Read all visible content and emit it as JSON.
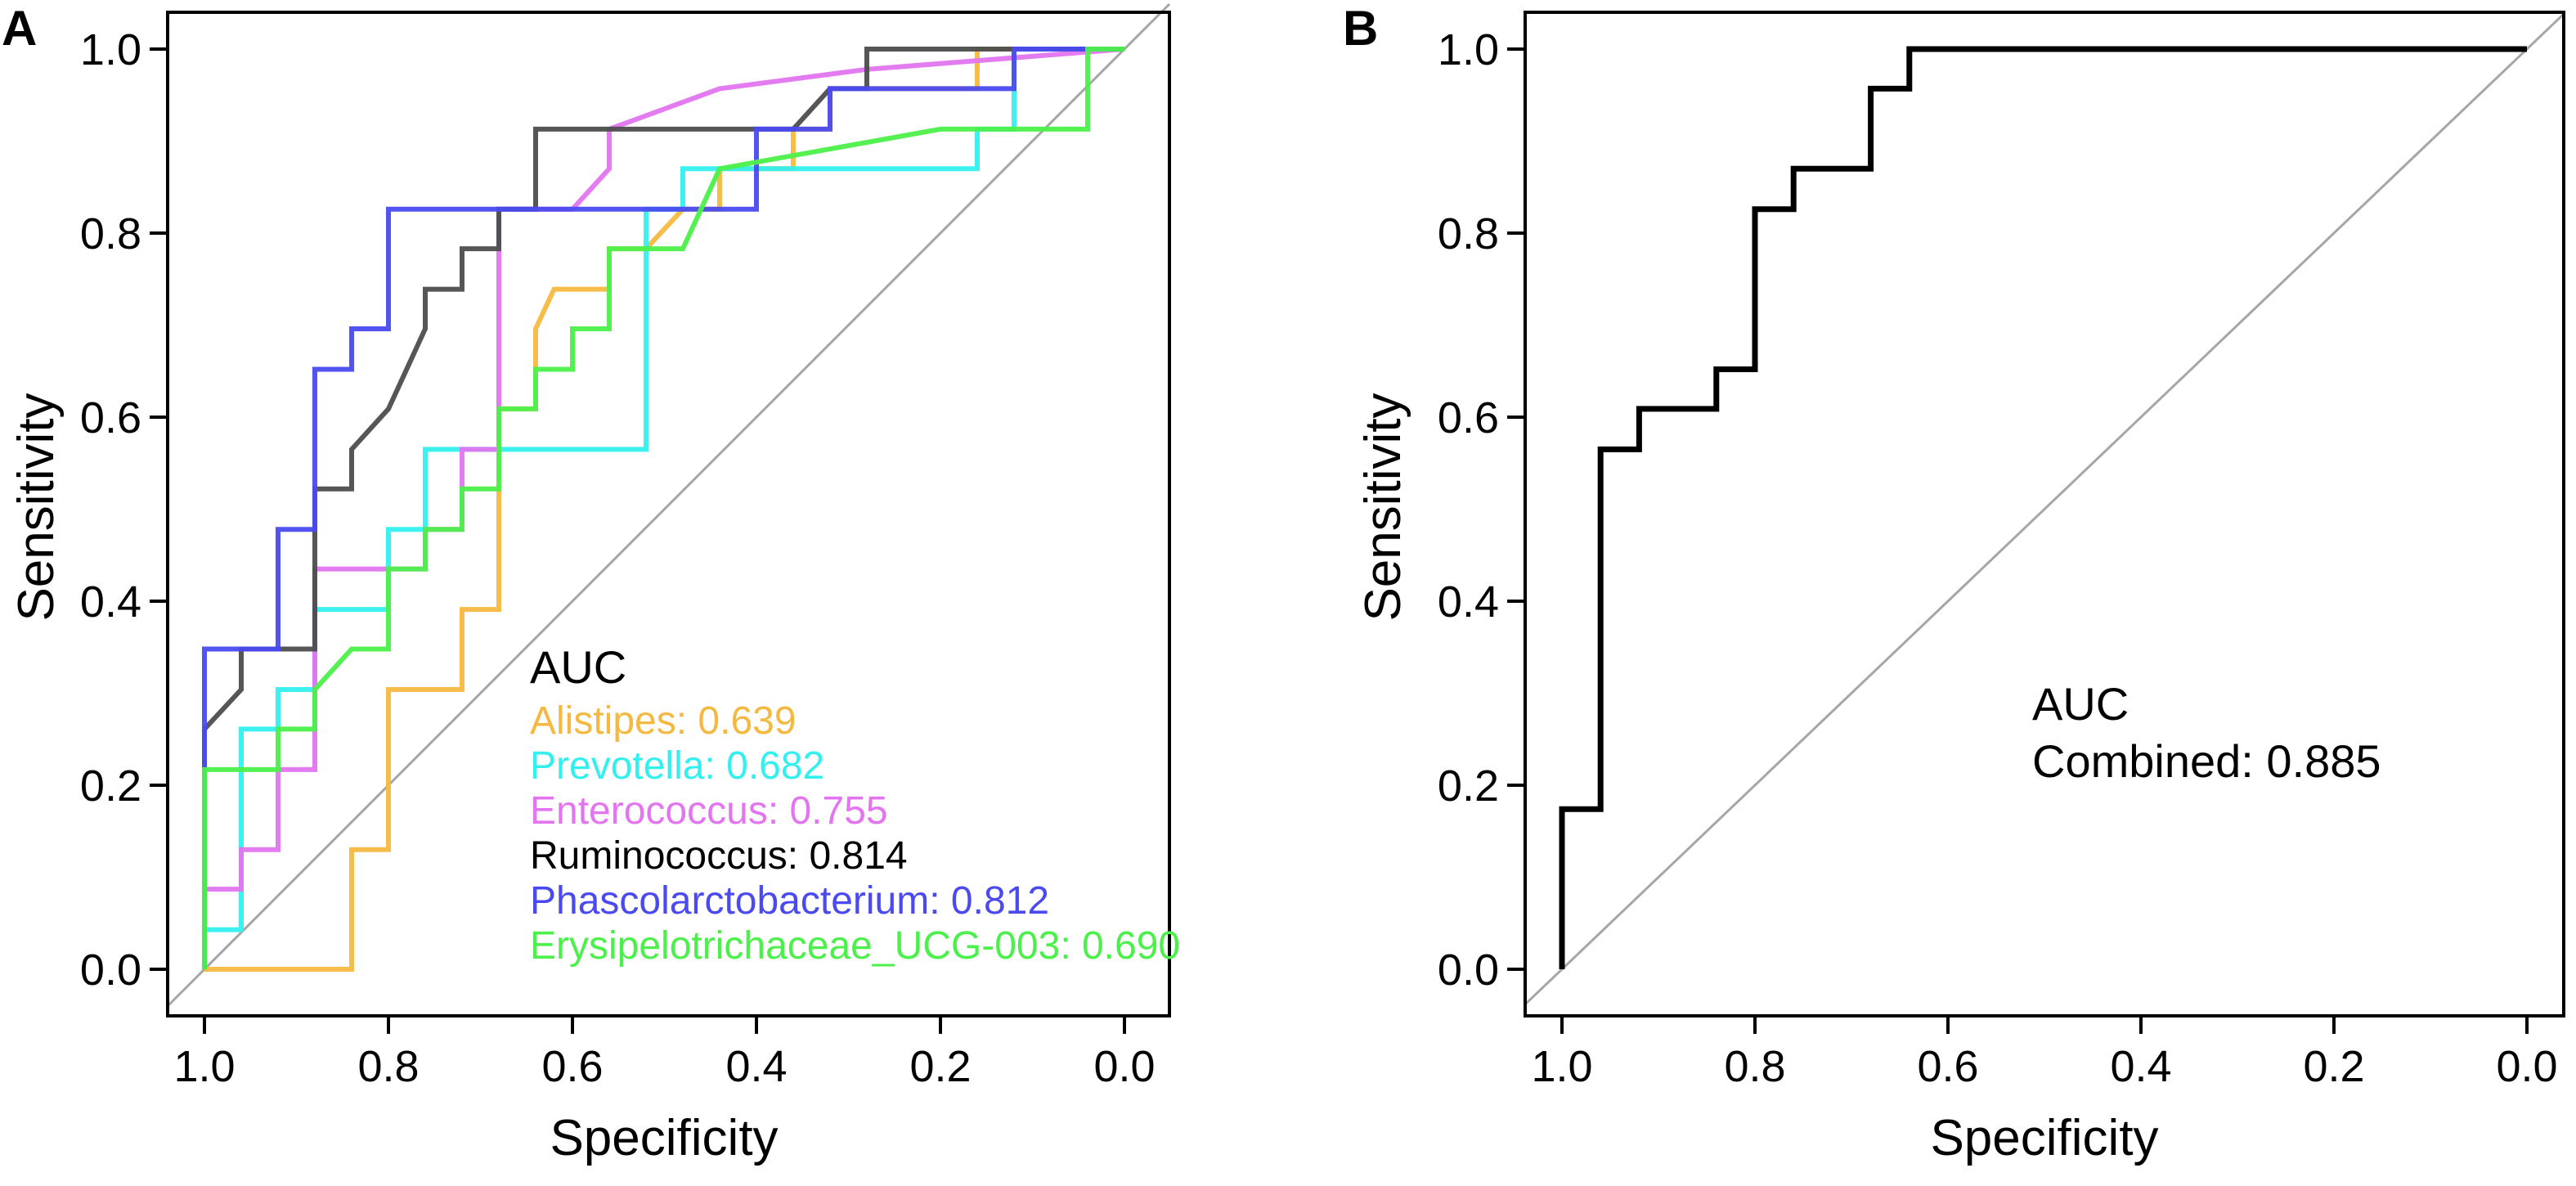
{
  "chart_data": [
    {
      "panel": "A",
      "type": "line",
      "title": "",
      "xlabel": "Specificity",
      "ylabel": "Sensitivity",
      "xlim": [
        1.0,
        0.0
      ],
      "ylim": [
        0.0,
        1.0
      ],
      "xticks": [
        "1.0",
        "0.8",
        "0.6",
        "0.4",
        "0.2",
        "0.0"
      ],
      "yticks": [
        "0.0",
        "0.2",
        "0.4",
        "0.6",
        "0.8",
        "1.0"
      ],
      "grid": false,
      "legend_title": "AUC",
      "legend_position": "bottom-right",
      "reference_color": "#a6a6a6",
      "series": [
        {
          "name": "Alistipes",
          "auc": "0.639",
          "color": "#f5b941",
          "points": [
            [
              1.0,
              0.0
            ],
            [
              0.84,
              0.0
            ],
            [
              0.84,
              0.13
            ],
            [
              0.8,
              0.13
            ],
            [
              0.8,
              0.304
            ],
            [
              0.72,
              0.304
            ],
            [
              0.72,
              0.391
            ],
            [
              0.68,
              0.391
            ],
            [
              0.68,
              0.609
            ],
            [
              0.64,
              0.609
            ],
            [
              0.64,
              0.696
            ],
            [
              0.62,
              0.739
            ],
            [
              0.56,
              0.739
            ],
            [
              0.56,
              0.783
            ],
            [
              0.52,
              0.783
            ],
            [
              0.48,
              0.826
            ],
            [
              0.44,
              0.826
            ],
            [
              0.44,
              0.87
            ],
            [
              0.36,
              0.87
            ],
            [
              0.36,
              0.913
            ],
            [
              0.32,
              0.913
            ],
            [
              0.32,
              0.957
            ],
            [
              0.16,
              0.957
            ],
            [
              0.16,
              1.0
            ],
            [
              0.0,
              1.0
            ]
          ]
        },
        {
          "name": "Prevotella",
          "auc": "0.682",
          "color": "#33f0f0",
          "points": [
            [
              1.0,
              0.0
            ],
            [
              1.0,
              0.043
            ],
            [
              0.96,
              0.043
            ],
            [
              0.96,
              0.261
            ],
            [
              0.92,
              0.261
            ],
            [
              0.92,
              0.304
            ],
            [
              0.88,
              0.304
            ],
            [
              0.88,
              0.391
            ],
            [
              0.8,
              0.391
            ],
            [
              0.8,
              0.478
            ],
            [
              0.76,
              0.478
            ],
            [
              0.76,
              0.565
            ],
            [
              0.52,
              0.565
            ],
            [
              0.52,
              0.826
            ],
            [
              0.48,
              0.826
            ],
            [
              0.48,
              0.87
            ],
            [
              0.16,
              0.87
            ],
            [
              0.16,
              0.913
            ],
            [
              0.12,
              0.913
            ],
            [
              0.12,
              1.0
            ],
            [
              0.0,
              1.0
            ]
          ]
        },
        {
          "name": "Enterococcus",
          "auc": "0.755",
          "color": "#e375f0",
          "points": [
            [
              1.0,
              0.0
            ],
            [
              1.0,
              0.087
            ],
            [
              0.96,
              0.087
            ],
            [
              0.96,
              0.13
            ],
            [
              0.92,
              0.13
            ],
            [
              0.92,
              0.217
            ],
            [
              0.88,
              0.217
            ],
            [
              0.88,
              0.435
            ],
            [
              0.76,
              0.435
            ],
            [
              0.76,
              0.478
            ],
            [
              0.72,
              0.478
            ],
            [
              0.72,
              0.565
            ],
            [
              0.68,
              0.565
            ],
            [
              0.68,
              0.826
            ],
            [
              0.6,
              0.826
            ],
            [
              0.56,
              0.87
            ],
            [
              0.56,
              0.913
            ],
            [
              0.44,
              0.957
            ],
            [
              0.28,
              0.978
            ],
            [
              0.0,
              1.0
            ]
          ]
        },
        {
          "name": "Ruminococcus",
          "auc": "0.814",
          "color": "#4d4d4d",
          "points": [
            [
              1.0,
              0.0
            ],
            [
              1.0,
              0.261
            ],
            [
              0.96,
              0.304
            ],
            [
              0.96,
              0.348
            ],
            [
              0.88,
              0.348
            ],
            [
              0.88,
              0.522
            ],
            [
              0.84,
              0.522
            ],
            [
              0.84,
              0.565
            ],
            [
              0.8,
              0.609
            ],
            [
              0.76,
              0.696
            ],
            [
              0.76,
              0.739
            ],
            [
              0.72,
              0.739
            ],
            [
              0.72,
              0.783
            ],
            [
              0.68,
              0.783
            ],
            [
              0.68,
              0.826
            ],
            [
              0.64,
              0.826
            ],
            [
              0.64,
              0.913
            ],
            [
              0.36,
              0.913
            ],
            [
              0.32,
              0.957
            ],
            [
              0.28,
              0.957
            ],
            [
              0.28,
              1.0
            ],
            [
              0.0,
              1.0
            ]
          ]
        },
        {
          "name": "Phascolarctobacterium",
          "auc": "0.812",
          "color": "#4a4af0",
          "points": [
            [
              1.0,
              0.0
            ],
            [
              1.0,
              0.348
            ],
            [
              0.92,
              0.348
            ],
            [
              0.92,
              0.478
            ],
            [
              0.88,
              0.478
            ],
            [
              0.88,
              0.652
            ],
            [
              0.84,
              0.652
            ],
            [
              0.84,
              0.696
            ],
            [
              0.8,
              0.696
            ],
            [
              0.8,
              0.826
            ],
            [
              0.68,
              0.826
            ],
            [
              0.4,
              0.826
            ],
            [
              0.4,
              0.913
            ],
            [
              0.32,
              0.913
            ],
            [
              0.32,
              0.957
            ],
            [
              0.12,
              0.957
            ],
            [
              0.12,
              1.0
            ],
            [
              0.0,
              1.0
            ]
          ]
        },
        {
          "name": "Erysipelotrichaceae_UCG-003",
          "auc": "0.690",
          "color": "#4cf04a",
          "points": [
            [
              1.0,
              0.0
            ],
            [
              1.0,
              0.217
            ],
            [
              0.92,
              0.217
            ],
            [
              0.92,
              0.261
            ],
            [
              0.88,
              0.261
            ],
            [
              0.88,
              0.304
            ],
            [
              0.84,
              0.348
            ],
            [
              0.8,
              0.348
            ],
            [
              0.8,
              0.435
            ],
            [
              0.76,
              0.435
            ],
            [
              0.76,
              0.478
            ],
            [
              0.72,
              0.478
            ],
            [
              0.72,
              0.522
            ],
            [
              0.68,
              0.522
            ],
            [
              0.68,
              0.609
            ],
            [
              0.64,
              0.609
            ],
            [
              0.64,
              0.652
            ],
            [
              0.6,
              0.652
            ],
            [
              0.6,
              0.696
            ],
            [
              0.56,
              0.696
            ],
            [
              0.56,
              0.783
            ],
            [
              0.48,
              0.783
            ],
            [
              0.44,
              0.87
            ],
            [
              0.2,
              0.913
            ],
            [
              0.04,
              0.913
            ],
            [
              0.04,
              1.0
            ],
            [
              0.0,
              1.0
            ]
          ]
        }
      ]
    },
    {
      "panel": "B",
      "type": "line",
      "title": "",
      "xlabel": "Specificity",
      "ylabel": "Sensitivity",
      "xlim": [
        1.0,
        0.0
      ],
      "ylim": [
        0.0,
        1.0
      ],
      "xticks": [
        "1.0",
        "0.8",
        "0.6",
        "0.4",
        "0.2",
        "0.0"
      ],
      "yticks": [
        "0.0",
        "0.2",
        "0.4",
        "0.6",
        "0.8",
        "1.0"
      ],
      "grid": false,
      "legend_title": "AUC",
      "legend_position": "center-right",
      "reference_color": "#a6a6a6",
      "series": [
        {
          "name": "Combined",
          "auc": "0.885",
          "color": "#000000",
          "points": [
            [
              1.0,
              0.0
            ],
            [
              1.0,
              0.174
            ],
            [
              0.96,
              0.174
            ],
            [
              0.96,
              0.565
            ],
            [
              0.92,
              0.565
            ],
            [
              0.92,
              0.609
            ],
            [
              0.84,
              0.609
            ],
            [
              0.84,
              0.652
            ],
            [
              0.8,
              0.652
            ],
            [
              0.8,
              0.826
            ],
            [
              0.76,
              0.826
            ],
            [
              0.76,
              0.87
            ],
            [
              0.68,
              0.87
            ],
            [
              0.68,
              0.957
            ],
            [
              0.64,
              0.957
            ],
            [
              0.64,
              1.0
            ],
            [
              0.0,
              1.0
            ]
          ]
        }
      ]
    }
  ]
}
